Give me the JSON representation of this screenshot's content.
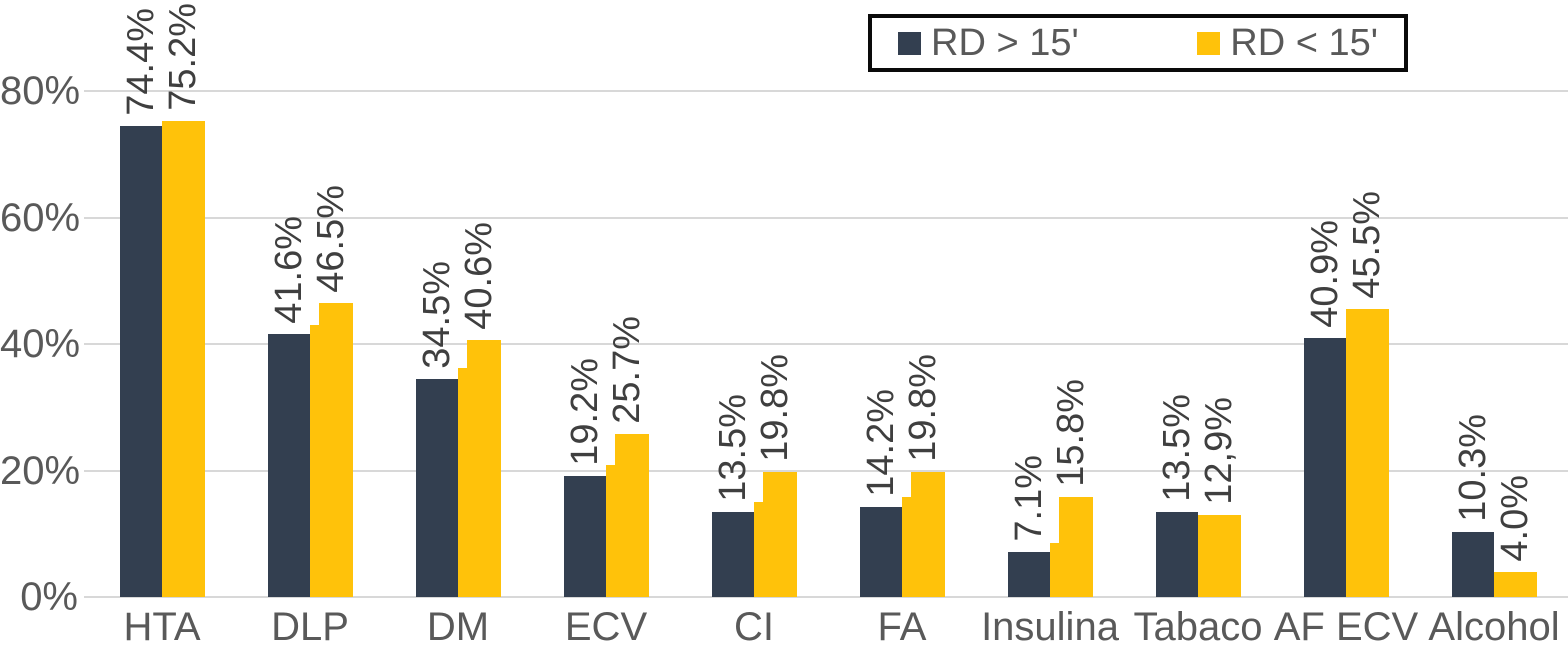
{
  "legend": {
    "items": [
      {
        "label": "RD > 15'",
        "color": "#333F50"
      },
      {
        "label": "RD < 15'",
        "color": "#FFC20A"
      }
    ],
    "position": "top-right",
    "border_color": "#0A0A0A"
  },
  "chart_data": {
    "type": "bar",
    "title": "",
    "xlabel": "",
    "ylabel": "",
    "categories": [
      "HTA",
      "DLP",
      "DM",
      "ECV",
      "CI",
      "FA",
      "Insulina",
      "Tabaco",
      "AF ECV",
      "Alcohol"
    ],
    "series": [
      {
        "name": "RD > 15'",
        "color": "#333F50",
        "values": [
          74.4,
          41.6,
          34.5,
          19.2,
          13.5,
          14.2,
          7.1,
          13.5,
          40.9,
          10.3
        ],
        "labels": [
          "74.4%",
          "41.6%",
          "34.5%",
          "19.2%",
          "13.5%",
          "14.2%",
          "7.1%",
          "13.5%",
          "40.9%",
          "10.3%"
        ]
      },
      {
        "name": "RD < 15'",
        "color": "#FFC20A",
        "values": [
          75.2,
          46.5,
          40.6,
          25.7,
          19.8,
          19.8,
          15.8,
          12.9,
          45.5,
          4.0
        ],
        "labels": [
          "75.2%",
          "46.5%",
          "40.6%",
          "25.7%",
          "19.8%",
          "19.8%",
          "15.8%",
          "12,9%",
          "45.5%",
          "4.0%"
        ],
        "left_step_values": [
          null,
          43.0,
          36.2,
          20.8,
          15.0,
          15.8,
          8.5,
          null,
          null,
          null
        ]
      }
    ],
    "y_axis": {
      "ticks": [
        0,
        20,
        40,
        60,
        80
      ],
      "tick_labels": [
        "0%",
        "20%",
        "40%",
        "60%",
        "80%"
      ],
      "ylim": [
        0,
        94
      ]
    },
    "grid": "horizontal",
    "legend_position": "top-right",
    "value_label_rotation": "90deg-counterclockwise",
    "colors": {
      "gridline": "#D8D8D8",
      "axis_text": "#595959",
      "value_text": "#3F3F3F",
      "background": "#FFFFFF"
    }
  }
}
